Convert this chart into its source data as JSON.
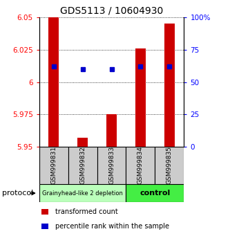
{
  "title": "GDS5113 / 10604930",
  "samples": [
    "GSM999831",
    "GSM999832",
    "GSM999833",
    "GSM999834",
    "GSM999835"
  ],
  "transformed_counts": [
    6.05,
    5.957,
    5.975,
    6.026,
    6.045
  ],
  "percentile_ranks": [
    62,
    60,
    60,
    62,
    62
  ],
  "ylim": [
    5.95,
    6.05
  ],
  "y2lim": [
    0,
    100
  ],
  "yticks": [
    5.95,
    5.975,
    6.0,
    6.025,
    6.05
  ],
  "ytick_labels": [
    "5.95",
    "5.975",
    "6",
    "6.025",
    "6.05"
  ],
  "y2ticks": [
    0,
    25,
    50,
    75,
    100
  ],
  "y2tick_labels": [
    "0",
    "25",
    "50",
    "75",
    "100%"
  ],
  "bar_color": "#cc0000",
  "dot_color": "#0000cc",
  "groups": [
    {
      "label": "Grainyhead-like 2 depletion",
      "color": "#bbffbb",
      "span": [
        0,
        3
      ]
    },
    {
      "label": "control",
      "color": "#44ee44",
      "span": [
        3,
        5
      ]
    }
  ],
  "protocol_label": "protocol",
  "legend_items": [
    {
      "color": "#cc0000",
      "label": "transformed count"
    },
    {
      "color": "#0000cc",
      "label": "percentile rank within the sample"
    }
  ],
  "title_fontsize": 10,
  "tick_fontsize": 7.5,
  "sample_fontsize": 6.5,
  "bar_width": 0.35,
  "dot_size": 18,
  "grid_linestyle": "dotted",
  "bg_color": "#ffffff"
}
